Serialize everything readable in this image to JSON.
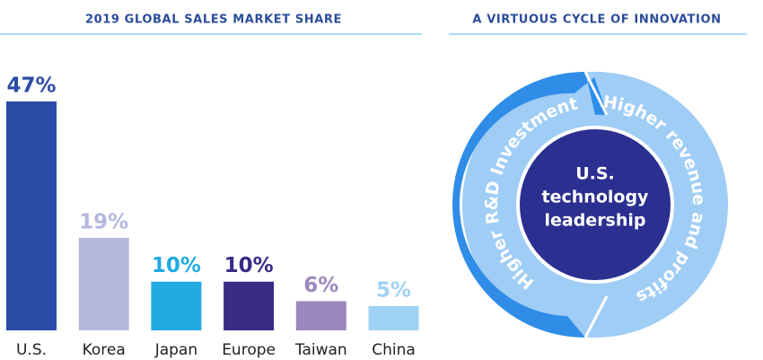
{
  "chart_data": {
    "type": "bar",
    "title": "2019 GLOBAL SALES MARKET SHARE",
    "categories": [
      "U.S.",
      "Korea",
      "Japan",
      "Europe",
      "Taiwan",
      "China"
    ],
    "values": [
      47,
      19,
      10,
      10,
      6,
      5
    ],
    "value_labels": [
      "47%",
      "19%",
      "10%",
      "10%",
      "6%",
      "5%"
    ],
    "colors": [
      "#2a4ca6",
      "#b5b7dd",
      "#22aae2",
      "#3b2a86",
      "#9b87bc",
      "#a0d2f3"
    ]
  },
  "diagram": {
    "title": "A VIRTUOUS CYCLE OF INNOVATION",
    "center": [
      "U.S.",
      "technology",
      "leadership"
    ],
    "left_label": "Higher R&D Investment",
    "right_label": "Higher revenue and profits"
  }
}
